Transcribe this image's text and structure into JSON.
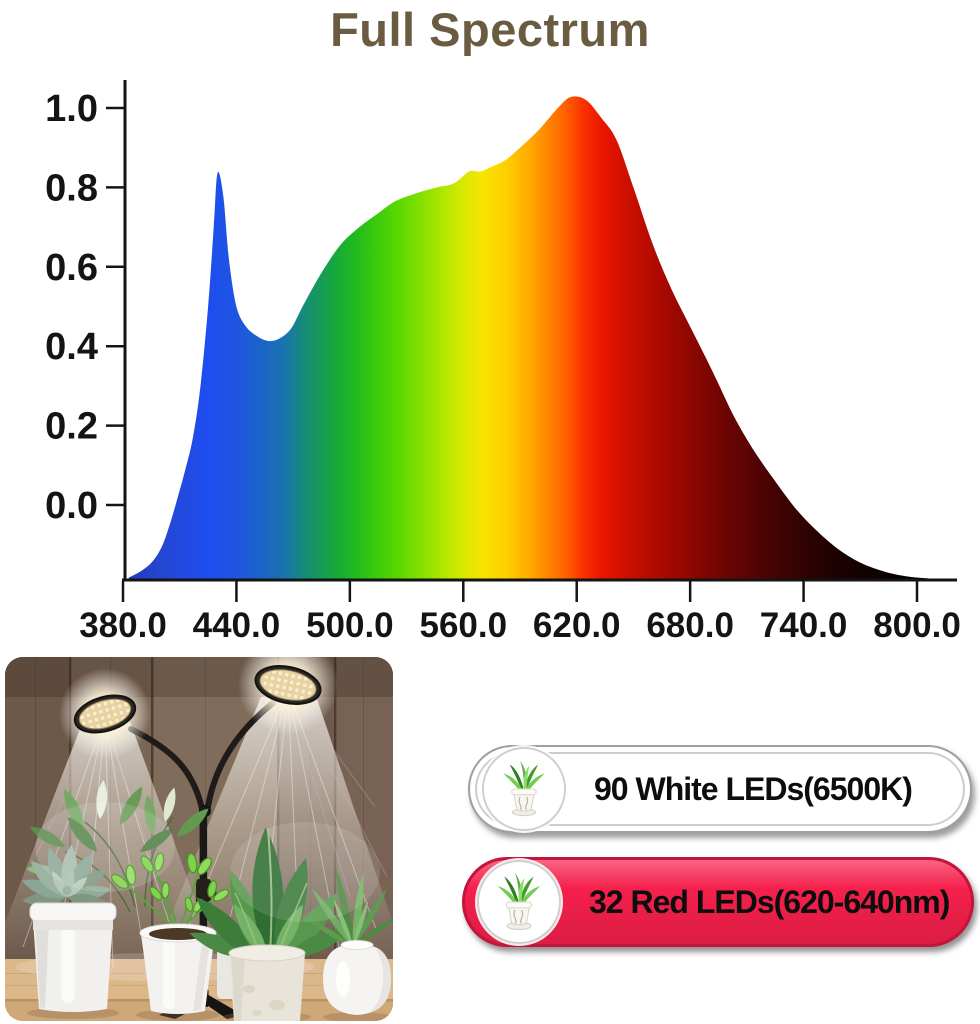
{
  "title": {
    "text": "Full Spectrum",
    "color": "#6a5c40"
  },
  "chart_data": {
    "type": "area",
    "title": "Full Spectrum",
    "xlabel": "",
    "ylabel": "",
    "grid": false,
    "axis_color": "#141414",
    "x_ticks": [
      {
        "label": "380.0",
        "wl": 380
      },
      {
        "label": "440.0",
        "wl": 440
      },
      {
        "label": "500.0",
        "wl": 500
      },
      {
        "label": "560.0",
        "wl": 560
      },
      {
        "label": "620.0",
        "wl": 620
      },
      {
        "label": "680.0",
        "wl": 680
      },
      {
        "label": "740.0",
        "wl": 740
      },
      {
        "label": "800.0",
        "wl": 800
      }
    ],
    "y_ticks": [
      {
        "label": "1.0",
        "v": 1.0
      },
      {
        "label": "0.8",
        "v": 0.8
      },
      {
        "label": "0.6",
        "v": 0.6
      },
      {
        "label": "0.4",
        "v": 0.4
      },
      {
        "label": "0.2",
        "v": 0.2
      },
      {
        "label": "0.0",
        "v": 0.0
      }
    ],
    "xlim": [
      380,
      807
    ],
    "ylim_labeled": [
      0.0,
      1.0
    ],
    "notes": "relative spectral intensity; blue LED spike ~430nm (0.84), dip ~457nm (0.41), phosphor hump 500-580nm (~0.7-0.85), red peak ~620nm (1.03), tail fades to baseline by ~805nm",
    "points": [
      [
        383,
        -0.183
      ],
      [
        390,
        -0.165
      ],
      [
        396,
        -0.14
      ],
      [
        401,
        -0.1
      ],
      [
        405,
        -0.045
      ],
      [
        409,
        0.02
      ],
      [
        413,
        0.09
      ],
      [
        417,
        0.17
      ],
      [
        421,
        0.3
      ],
      [
        425,
        0.5
      ],
      [
        428,
        0.7
      ],
      [
        430,
        0.836
      ],
      [
        433,
        0.78
      ],
      [
        436,
        0.62
      ],
      [
        440,
        0.5
      ],
      [
        445,
        0.45
      ],
      [
        451,
        0.425
      ],
      [
        457,
        0.413
      ],
      [
        463,
        0.42
      ],
      [
        469,
        0.445
      ],
      [
        475,
        0.5
      ],
      [
        485,
        0.585
      ],
      [
        495,
        0.655
      ],
      [
        505,
        0.7
      ],
      [
        515,
        0.735
      ],
      [
        524,
        0.765
      ],
      [
        535,
        0.785
      ],
      [
        546,
        0.8
      ],
      [
        555,
        0.81
      ],
      [
        563,
        0.84
      ],
      [
        569,
        0.84
      ],
      [
        575,
        0.852
      ],
      [
        582,
        0.868
      ],
      [
        590,
        0.9
      ],
      [
        600,
        0.945
      ],
      [
        610,
        1.0
      ],
      [
        617,
        1.028
      ],
      [
        625,
        1.02
      ],
      [
        633,
        0.975
      ],
      [
        641,
        0.92
      ],
      [
        650,
        0.8
      ],
      [
        660,
        0.66
      ],
      [
        670,
        0.545
      ],
      [
        681,
        0.44
      ],
      [
        692,
        0.335
      ],
      [
        703,
        0.225
      ],
      [
        714,
        0.135
      ],
      [
        725,
        0.06
      ],
      [
        736,
        -0.01
      ],
      [
        747,
        -0.065
      ],
      [
        758,
        -0.11
      ],
      [
        770,
        -0.145
      ],
      [
        783,
        -0.168
      ],
      [
        795,
        -0.18
      ],
      [
        806,
        -0.185
      ]
    ],
    "gradient_stops": [
      {
        "wl": 383,
        "c": "#2336b8"
      },
      {
        "wl": 400,
        "c": "#2547d2"
      },
      {
        "wl": 425,
        "c": "#1e4df0"
      },
      {
        "wl": 440,
        "c": "#1f55e0"
      },
      {
        "wl": 455,
        "c": "#1a66c4"
      },
      {
        "wl": 465,
        "c": "#1973ae"
      },
      {
        "wl": 478,
        "c": "#16906f"
      },
      {
        "wl": 490,
        "c": "#17a442"
      },
      {
        "wl": 502,
        "c": "#1fb822"
      },
      {
        "wl": 512,
        "c": "#35c90d"
      },
      {
        "wl": 524,
        "c": "#55d600"
      },
      {
        "wl": 536,
        "c": "#7fdf00"
      },
      {
        "wl": 548,
        "c": "#abe600"
      },
      {
        "wl": 560,
        "c": "#d8e900"
      },
      {
        "wl": 570,
        "c": "#f7e400"
      },
      {
        "wl": 582,
        "c": "#ffd000"
      },
      {
        "wl": 594,
        "c": "#ffad00"
      },
      {
        "wl": 605,
        "c": "#ff8500"
      },
      {
        "wl": 615,
        "c": "#ff5c00"
      },
      {
        "wl": 624,
        "c": "#fa3000"
      },
      {
        "wl": 633,
        "c": "#e91700"
      },
      {
        "wl": 645,
        "c": "#d01000"
      },
      {
        "wl": 658,
        "c": "#b70b00"
      },
      {
        "wl": 672,
        "c": "#9c0801"
      },
      {
        "wl": 688,
        "c": "#7f0602"
      },
      {
        "wl": 705,
        "c": "#620403"
      },
      {
        "wl": 722,
        "c": "#470303"
      },
      {
        "wl": 740,
        "c": "#300202"
      },
      {
        "wl": 758,
        "c": "#1d0101"
      },
      {
        "wl": 778,
        "c": "#0e0101"
      },
      {
        "wl": 795,
        "c": "#060000"
      },
      {
        "wl": 806,
        "c": "#030000"
      }
    ]
  },
  "photo": {
    "alt": "Dual-head LED grow light on a pole stand shining warm light beams on assorted potted plants (succulent, venus flytrap, broad-leaf houseplants) in white pots on a light wood table against a dark wood-plank wall"
  },
  "badges": [
    {
      "label": "90 White LEDs(6500K)",
      "fill": "#ffffff",
      "border": "#9f9f9f",
      "text_color": "#0d0d0d",
      "icon": "potted-plant"
    },
    {
      "label": "32 Red LEDs(620-640nm)",
      "fill": "#f5204c",
      "border": "#c4143c",
      "text_color": "#0d0d0d",
      "icon": "potted-plant"
    }
  ]
}
